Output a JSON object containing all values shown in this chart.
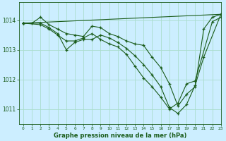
{
  "title": "Graphe pression niveau de la mer (hPa)",
  "background_color": "#cceeff",
  "grid_color": "#aaddcc",
  "line_color": "#1a5c1a",
  "xlim": [
    -0.5,
    23
  ],
  "ylim": [
    1010.5,
    1014.6
  ],
  "yticks": [
    1011,
    1012,
    1013,
    1014
  ],
  "xticks": [
    0,
    1,
    2,
    3,
    4,
    5,
    6,
    7,
    8,
    9,
    10,
    11,
    12,
    13,
    14,
    15,
    16,
    17,
    18,
    19,
    20,
    21,
    22,
    23
  ],
  "series": [
    {
      "x": [
        0,
        1,
        2,
        3,
        4,
        5,
        6,
        7,
        8,
        9,
        10,
        11,
        12,
        13,
        14,
        15,
        16,
        17,
        18,
        19,
        20,
        21,
        22,
        23
      ],
      "y": [
        1013.9,
        1013.9,
        1014.1,
        1013.85,
        1013.7,
        1013.55,
        1013.5,
        1013.45,
        1013.8,
        1013.75,
        1013.55,
        1013.45,
        1013.3,
        1013.2,
        1013.15,
        1012.75,
        1012.4,
        1011.85,
        1011.1,
        1011.5,
        1011.75,
        1013.7,
        1014.1,
        1014.2
      ]
    },
    {
      "x": [
        0,
        2,
        3,
        4,
        5,
        6,
        7,
        8,
        9,
        10,
        11,
        12,
        13,
        14,
        15,
        16,
        17,
        18,
        19,
        20,
        21,
        23
      ],
      "y": [
        1013.9,
        1013.9,
        1013.75,
        1013.55,
        1013.0,
        1013.25,
        1013.35,
        1013.35,
        1013.5,
        1013.4,
        1013.25,
        1013.05,
        1012.8,
        1012.5,
        1012.15,
        1011.75,
        1011.05,
        1010.85,
        1011.15,
        1011.8,
        1012.75,
        1014.2
      ]
    },
    {
      "x": [
        0,
        2,
        3,
        4,
        5,
        6,
        7,
        8,
        9,
        10,
        11,
        12,
        13,
        14,
        15,
        16,
        17,
        18,
        19,
        20,
        22,
        23
      ],
      "y": [
        1013.9,
        1013.85,
        1013.7,
        1013.5,
        1013.3,
        1013.3,
        1013.4,
        1013.55,
        1013.35,
        1013.2,
        1013.1,
        1012.85,
        1012.45,
        1012.05,
        1011.75,
        1011.4,
        1011.0,
        1011.2,
        1011.85,
        1011.95,
        1013.95,
        1014.1
      ]
    },
    {
      "x": [
        0,
        23
      ],
      "y": [
        1013.9,
        1014.2
      ]
    }
  ]
}
